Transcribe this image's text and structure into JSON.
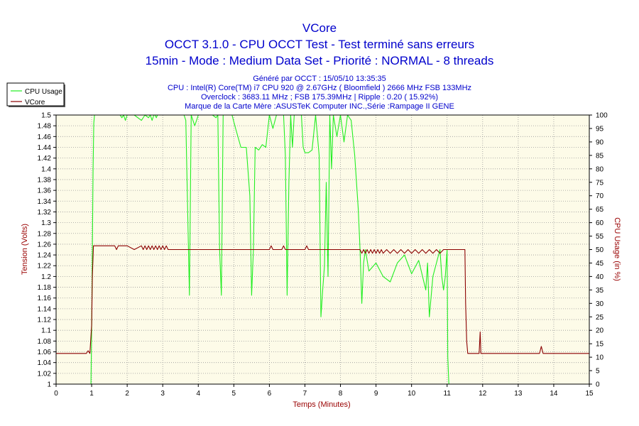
{
  "header": {
    "title": "VCore",
    "subtitle1": "OCCT 3.1.0 - CPU OCCT Test - Test terminé sans erreurs",
    "subtitle2": "15min - Mode : Medium Data Set - Priorité : NORMAL - 8 threads",
    "info1": "Généré par OCCT : 15/05/10 13:35:35",
    "info2": "CPU : Intel(R) Core(TM) i7 CPU 920 @ 2.67GHz ( Bloomfield ) 2666 MHz FSB 133MHz",
    "info3": "Overclock : 3683.11 MHz ; FSB 175.39MHz | Ripple : 0.20 ( 15.92%)",
    "info4": "Marque de la Carte Mère :ASUSTeK Computer INC.,Série :Rampage II GENE"
  },
  "colors": {
    "plot_background": "#fdfbe8",
    "grid": "#999999",
    "cpu_usage": "#22ee22",
    "vcore": "#8b0000",
    "title": "#0000cc",
    "axis_label": "#990000"
  },
  "chart_data": {
    "type": "line",
    "xlabel": "Temps (Minutes)",
    "ylabel_left": "Tension (Volts)",
    "ylabel_right": "CPU Usage (in %)",
    "xlim": [
      0,
      15
    ],
    "ylim_left": [
      1.0,
      1.5
    ],
    "ylim_right": [
      0,
      100
    ],
    "x_ticks": [
      "0",
      "1",
      "2",
      "3",
      "4",
      "5",
      "6",
      "7",
      "8",
      "9",
      "10",
      "11",
      "12",
      "13",
      "14",
      "15"
    ],
    "y_left_ticks": [
      "1",
      "1.02",
      "1.04",
      "1.06",
      "1.08",
      "1.1",
      "1.12",
      "1.14",
      "1.16",
      "1.18",
      "1.2",
      "1.22",
      "1.24",
      "1.26",
      "1.28",
      "1.3",
      "1.32",
      "1.34",
      "1.36",
      "1.38",
      "1.4",
      "1.42",
      "1.44",
      "1.46",
      "1.48",
      "1.5"
    ],
    "y_right_ticks": [
      "0",
      "5",
      "10",
      "15",
      "20",
      "25",
      "30",
      "35",
      "40",
      "45",
      "50",
      "55",
      "60",
      "65",
      "70",
      "75",
      "80",
      "85",
      "90",
      "95",
      "100"
    ],
    "grid": true,
    "legend_position": "top-left",
    "series": [
      {
        "name": "CPU Usage",
        "axis": "right",
        "x": [
          0.98,
          1.0,
          1.02,
          1.04,
          1.06,
          1.08,
          1.1,
          1.15,
          1.5,
          1.7,
          1.8,
          1.85,
          1.9,
          1.95,
          2.0,
          2.2,
          2.4,
          2.5,
          2.6,
          2.65,
          2.7,
          2.75,
          2.78,
          2.82,
          2.85,
          2.95,
          3.2,
          3.4,
          3.6,
          3.65,
          3.7,
          3.75,
          3.8,
          3.9,
          4.0,
          4.2,
          4.4,
          4.5,
          4.55,
          4.6,
          4.65,
          4.7,
          4.8,
          4.95,
          5.05,
          5.2,
          5.35,
          5.45,
          5.5,
          5.55,
          5.6,
          5.7,
          5.8,
          5.9,
          6.0,
          6.1,
          6.2,
          6.3,
          6.4,
          6.45,
          6.5,
          6.55,
          6.6,
          6.65,
          6.7,
          6.8,
          6.9,
          6.95,
          7.0,
          7.1,
          7.2,
          7.3,
          7.4,
          7.45,
          7.5,
          7.55,
          7.6,
          7.65,
          7.7,
          7.75,
          7.8,
          7.9,
          8.0,
          8.1,
          8.2,
          8.3,
          8.4,
          8.45,
          8.5,
          8.55,
          8.6,
          8.65,
          8.7,
          8.8,
          9.0,
          9.2,
          9.4,
          9.6,
          9.8,
          10.0,
          10.2,
          10.4,
          10.45,
          10.5,
          10.6,
          10.8,
          10.85,
          10.9,
          10.95,
          11.0,
          11.02,
          11.05,
          11.1
        ],
        "values": [
          0,
          20,
          50,
          80,
          97,
          100,
          100,
          100,
          100,
          100,
          100,
          99,
          100,
          98,
          100,
          100,
          98,
          100,
          99,
          100,
          98,
          100,
          100,
          99,
          100,
          100,
          100,
          100,
          100,
          98,
          66,
          33,
          100,
          96,
          100,
          100,
          100,
          99,
          100,
          50,
          33,
          100,
          100,
          100,
          95,
          88,
          88,
          70,
          33,
          50,
          88,
          87,
          89,
          88,
          100,
          95,
          100,
          100,
          100,
          85,
          33,
          75,
          100,
          88,
          100,
          100,
          100,
          88,
          86,
          86,
          87,
          100,
          85,
          25,
          35,
          44,
          75,
          40,
          100,
          80,
          100,
          92,
          100,
          90,
          100,
          98,
          85,
          75,
          65,
          50,
          30,
          45,
          50,
          42,
          45,
          40,
          38,
          45,
          48,
          41,
          46,
          35,
          45,
          25,
          40,
          50,
          40,
          35,
          40,
          50,
          10,
          0,
          0
        ],
        "color": "#22ee22"
      },
      {
        "name": "VCore",
        "axis": "left",
        "x": [
          0.0,
          0.8,
          0.85,
          0.9,
          0.95,
          1.0,
          1.02,
          1.05,
          1.1,
          1.5,
          1.65,
          1.7,
          1.75,
          1.8,
          2.0,
          2.2,
          2.4,
          2.45,
          2.5,
          2.55,
          2.6,
          2.65,
          2.7,
          2.75,
          2.8,
          2.85,
          2.9,
          2.95,
          3.0,
          3.05,
          3.1,
          3.15,
          3.2,
          3.3,
          3.4,
          6.0,
          6.05,
          6.1,
          6.2,
          6.35,
          6.4,
          6.45,
          6.5,
          6.55,
          7.0,
          7.05,
          7.1,
          8.55,
          8.6,
          8.65,
          8.7,
          8.75,
          8.8,
          8.85,
          8.9,
          8.95,
          9.0,
          9.05,
          9.1,
          9.15,
          9.2,
          9.3,
          9.4,
          9.5,
          9.6,
          9.7,
          9.8,
          9.9,
          10.0,
          10.1,
          10.2,
          10.3,
          10.4,
          10.5,
          10.6,
          10.7,
          10.8,
          10.9,
          11.0,
          11.5,
          11.52,
          11.55,
          11.58,
          11.6,
          11.9,
          11.93,
          11.95,
          12.0,
          13.6,
          13.65,
          13.7,
          15.0
        ],
        "values": [
          1.057,
          1.057,
          1.057,
          1.062,
          1.057,
          1.11,
          1.2,
          1.257,
          1.257,
          1.257,
          1.257,
          1.25,
          1.257,
          1.257,
          1.257,
          1.25,
          1.257,
          1.25,
          1.257,
          1.25,
          1.257,
          1.25,
          1.257,
          1.25,
          1.257,
          1.25,
          1.257,
          1.25,
          1.257,
          1.25,
          1.257,
          1.25,
          1.25,
          1.25,
          1.25,
          1.25,
          1.257,
          1.25,
          1.25,
          1.25,
          1.257,
          1.25,
          1.25,
          1.25,
          1.25,
          1.257,
          1.25,
          1.25,
          1.243,
          1.25,
          1.243,
          1.25,
          1.243,
          1.25,
          1.243,
          1.25,
          1.243,
          1.25,
          1.243,
          1.25,
          1.243,
          1.25,
          1.243,
          1.25,
          1.243,
          1.25,
          1.243,
          1.25,
          1.243,
          1.25,
          1.243,
          1.25,
          1.243,
          1.25,
          1.243,
          1.25,
          1.243,
          1.25,
          1.25,
          1.25,
          1.15,
          1.08,
          1.057,
          1.057,
          1.057,
          1.097,
          1.057,
          1.057,
          1.057,
          1.07,
          1.057,
          1.057
        ],
        "color": "#8b0000"
      }
    ]
  }
}
